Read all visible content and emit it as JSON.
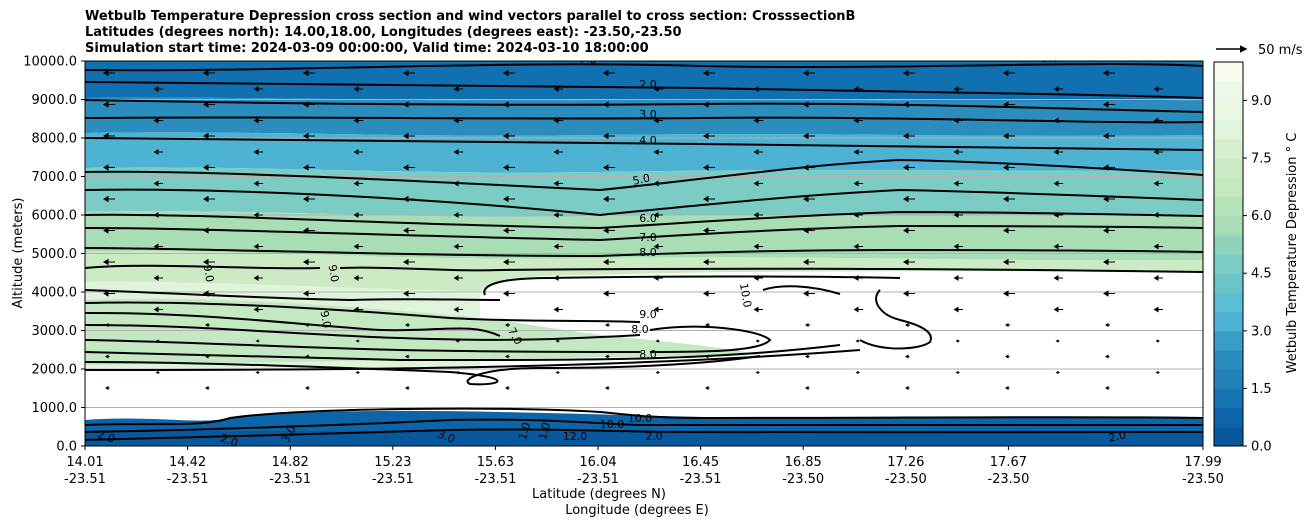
{
  "chart_data": {
    "type": "heatmap",
    "title": [
      "Wetbulb Temperature Depression cross section and wind vectors parallel to cross section: CrosssectionB",
      "Latitudes (degrees north): 14.00,18.00, Longitudes (degrees east): -23.50,-23.50",
      "Simulation start time: 2024-03-09 00:00:00, Valid time: 2024-03-10 18:00:00"
    ],
    "ylabel": "Altitude (meters)",
    "xlabel_lat": "Latitude (degrees N)",
    "xlabel_lon": "Longitude (degrees E)",
    "ylim": [
      0,
      10000
    ],
    "y_ticks": [
      "0.0",
      "1000.0",
      "2000.0",
      "3000.0",
      "4000.0",
      "5000.0",
      "6000.0",
      "7000.0",
      "8000.0",
      "9000.0",
      "10000.0"
    ],
    "x_ticks": [
      {
        "lat": "14.01",
        "lon": "-23.51"
      },
      {
        "lat": "14.42",
        "lon": "-23.51"
      },
      {
        "lat": "14.82",
        "lon": "-23.51"
      },
      {
        "lat": "15.23",
        "lon": "-23.51"
      },
      {
        "lat": "15.63",
        "lon": "-23.51"
      },
      {
        "lat": "16.04",
        "lon": "-23.51"
      },
      {
        "lat": "16.45",
        "lon": "-23.51"
      },
      {
        "lat": "16.85",
        "lon": "-23.50"
      },
      {
        "lat": "17.26",
        "lon": "-23.50"
      },
      {
        "lat": "17.67",
        "lon": "-23.50"
      },
      {
        "lat": "17.99",
        "lon": "-23.50"
      }
    ],
    "grid": "horizontal",
    "colorbar": {
      "label": "Wetbulb Temperature Depression $^\\circ$C",
      "label_display": "Wetbulb Temperature Depression ° C",
      "min": 0,
      "max": 10,
      "levels": 20,
      "ticks": [
        "0.0",
        "1.5",
        "3.0",
        "4.5",
        "6.0",
        "7.5",
        "9.0"
      ],
      "colormap": [
        "#08589e",
        "#0b65a8",
        "#1673b1",
        "#2181b8",
        "#2b8cbe",
        "#3a9cc8",
        "#4eb3d3",
        "#5dbdd4",
        "#6bc4c8",
        "#7bccc4",
        "#8fd3bf",
        "#a8ddb5",
        "#b6e2b7",
        "#c4e8c2",
        "#ccebc5",
        "#d6efcf",
        "#e0f3db",
        "#e8f6e3",
        "#eef8ea",
        "#f7fcf0"
      ],
      "over_color": "#ffffff"
    },
    "wind_key": {
      "value": 50,
      "label": "50 m/s"
    },
    "contour_labels": [
      "2.0",
      "2.0",
      "2.0",
      "3.0",
      "4.0",
      "5.0",
      "6.0",
      "7.0",
      "8.0",
      "8.0",
      "8.0",
      "9.0",
      "9.0",
      "9.0",
      "9.0",
      "7.0",
      "10.0",
      "1.0",
      "1.0",
      "2.0",
      "2.0",
      "2.0",
      "3.0",
      "3.0",
      "2.0",
      "10.0",
      "10.0",
      "12.0"
    ]
  }
}
